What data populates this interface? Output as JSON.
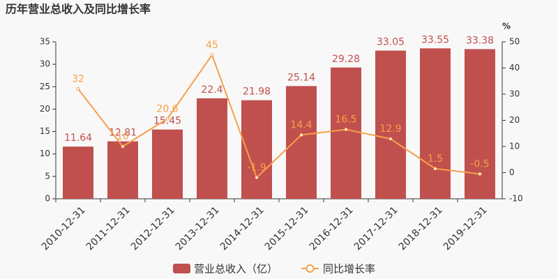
{
  "chart_data": {
    "type": "bar",
    "title": "历年营业总收入及同比增长率",
    "categories": [
      "2010-12-31",
      "2011-12-31",
      "2012-12-31",
      "2013-12-31",
      "2014-12-31",
      "2015-12-31",
      "2016-12-31",
      "2017-12-31",
      "2018-12-31",
      "2019-12-31"
    ],
    "series": [
      {
        "name": "营业总收入（亿）",
        "type": "bar",
        "color": "#c0504d",
        "values": [
          11.64,
          12.81,
          15.45,
          22.4,
          21.98,
          25.14,
          29.28,
          33.05,
          33.55,
          33.38
        ]
      },
      {
        "name": "同比增长率",
        "type": "line",
        "axis": "y2",
        "color": "#f5a04a",
        "values": [
          32,
          10,
          20.6,
          45,
          -1.9,
          14.4,
          16.5,
          12.9,
          1.5,
          -0.5
        ]
      }
    ],
    "ylim": [
      0,
      35
    ],
    "yticks": [
      0,
      5,
      10,
      15,
      20,
      25,
      30,
      35
    ],
    "y2label": "%",
    "y2lim": [
      -10,
      50
    ],
    "y2ticks": [
      -10,
      0,
      10,
      20,
      30,
      40,
      50
    ]
  }
}
